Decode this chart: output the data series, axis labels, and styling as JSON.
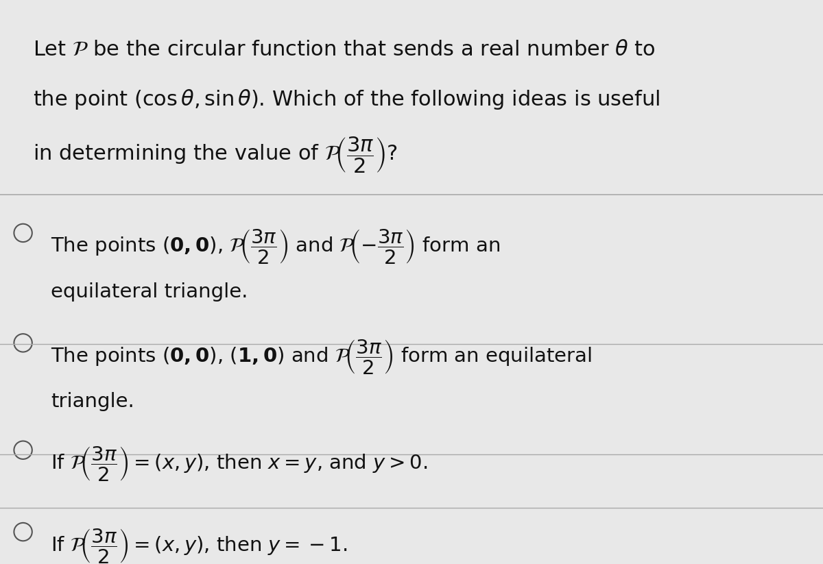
{
  "background_color": "#e8e8e8",
  "figsize": [
    12.0,
    8.23
  ],
  "dpi": 100,
  "title_lines": [
    "Let $\\mathcal{P}$ be the circular function that sends a real number $\\theta$ to",
    "the point $(\\cos\\theta, \\sin\\theta)$. Which of the following ideas is useful",
    "in determining the value of $\\mathcal{P}\\!\\left(\\dfrac{3\\pi}{2}\\right)$?"
  ],
  "options": [
    "The points $(\\mathbf{0, 0})$, $\\mathcal{P}\\!\\left(\\dfrac{3\\pi}{2}\\right)$ and $\\mathcal{P}\\!\\left(-\\dfrac{3\\pi}{2}\\right)$ form an\nequilateral triangle.",
    "The points $(\\mathbf{0, 0})$, $(\\mathbf{1, 0})$ and $\\mathcal{P}\\!\\left(\\dfrac{3\\pi}{2}\\right)$ form an equilateral\ntriangle.",
    "If $\\mathcal{P}\\!\\left(\\dfrac{3\\pi}{2}\\right) = (x, y)$, then $x = y$, and $y > 0$.",
    "If $\\mathcal{P}\\!\\left(\\dfrac{3\\pi}{2}\\right) = (x, y)$, then $y = -1$."
  ],
  "font_size_title": 22,
  "font_size_option": 21,
  "text_color": "#111111",
  "separator_color": "#aaaaaa",
  "radio_color": "#555555"
}
